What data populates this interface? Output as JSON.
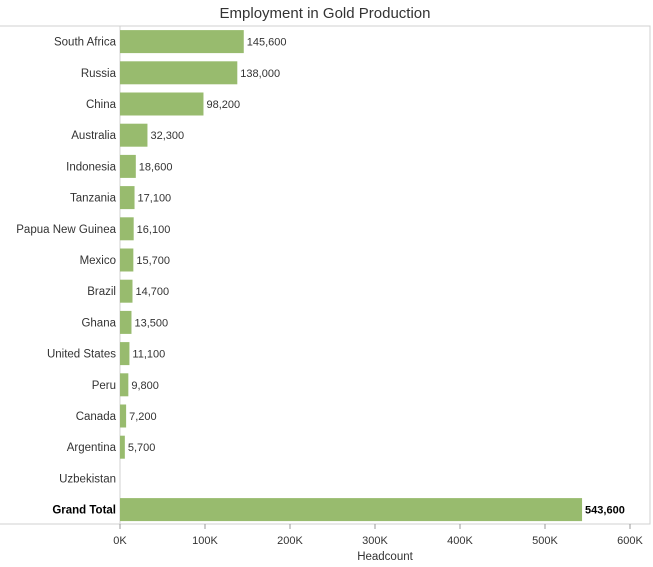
{
  "chart_data": {
    "type": "bar",
    "orientation": "horizontal",
    "title": "Employment in Gold Production",
    "xlabel": "Headcount",
    "ylabel": "",
    "xlim": [
      0,
      600000
    ],
    "ticks": [
      0,
      100000,
      200000,
      300000,
      400000,
      500000,
      600000
    ],
    "tick_labels": [
      "0K",
      "100K",
      "200K",
      "300K",
      "400K",
      "500K",
      "600K"
    ],
    "bar_color": "#98bb6e",
    "grid": false,
    "categories": [
      "South Africa",
      "Russia",
      "China",
      "Australia",
      "Indonesia",
      "Tanzania",
      "Papua New Guinea",
      "Mexico",
      "Brazil",
      "Ghana",
      "United States",
      "Peru",
      "Canada",
      "Argentina",
      "Uzbekistan",
      "Grand Total"
    ],
    "values": [
      145600,
      138000,
      98200,
      32300,
      18600,
      17100,
      16100,
      15700,
      14700,
      13500,
      11100,
      9800,
      7200,
      5700,
      null,
      543600
    ],
    "value_labels": [
      "145,600",
      "138,000",
      "98,200",
      "32,300",
      "18,600",
      "17,100",
      "16,100",
      "15,700",
      "14,700",
      "13,500",
      "11,100",
      "9,800",
      "7,200",
      "5,700",
      "",
      "543,600"
    ],
    "bold_categories": [
      "Grand Total"
    ]
  }
}
